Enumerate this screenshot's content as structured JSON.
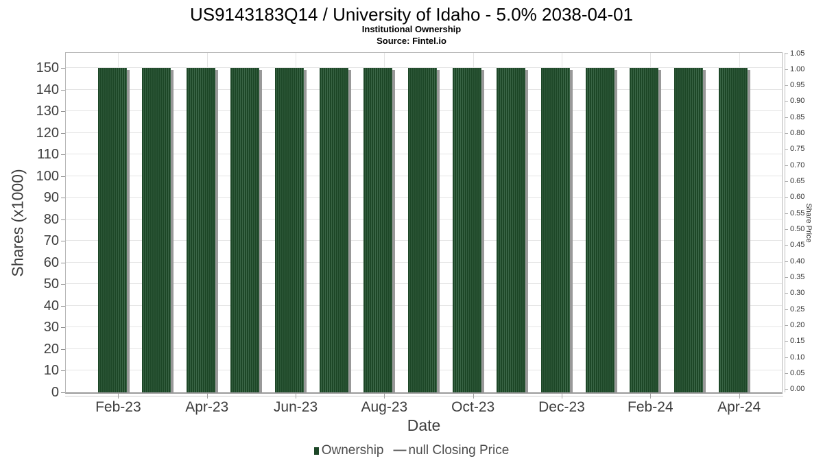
{
  "chart_data": {
    "type": "bar",
    "title": "US9143183Q14 / University of Idaho - 5.0% 2038-04-01",
    "subtitle": "Institutional Ownership",
    "source": "Source: Fintel.io",
    "xlabel": "Date",
    "ylabel": "Shares (x1000)",
    "ylabel_right": "Share Price",
    "categories": [
      "Feb-23",
      "Mar-23",
      "Apr-23",
      "May-23",
      "Jun-23",
      "Jul-23",
      "Aug-23",
      "Sep-23",
      "Oct-23",
      "Nov-23",
      "Dec-23",
      "Jan-24",
      "Feb-24",
      "Mar-24",
      "Apr-24"
    ],
    "values": [
      150,
      150,
      150,
      150,
      150,
      150,
      150,
      150,
      150,
      150,
      150,
      150,
      150,
      150,
      150
    ],
    "series": [
      {
        "name": "Ownership",
        "values": [
          150,
          150,
          150,
          150,
          150,
          150,
          150,
          150,
          150,
          150,
          150,
          150,
          150,
          150,
          150
        ]
      }
    ],
    "x_tick_labels": [
      "Feb-23",
      "Apr-23",
      "Jun-23",
      "Aug-23",
      "Oct-23",
      "Dec-23",
      "Feb-24",
      "Apr-24"
    ],
    "y_left_ticks": [
      0,
      10,
      20,
      30,
      40,
      50,
      60,
      70,
      80,
      90,
      100,
      110,
      120,
      130,
      140,
      150
    ],
    "y_right_ticks": [
      "0.00",
      "0.05",
      "0.10",
      "0.15",
      "0.20",
      "0.25",
      "0.30",
      "0.35",
      "0.40",
      "0.45",
      "0.50",
      "0.55",
      "0.60",
      "0.65",
      "0.70",
      "0.75",
      "0.80",
      "0.85",
      "0.90",
      "0.95",
      "1.00",
      "1.05"
    ],
    "ylim": [
      0,
      150
    ],
    "ylim_right": [
      0,
      1.05
    ],
    "grid": true,
    "legend_position": "bottom",
    "legend": [
      {
        "label": "Ownership",
        "marker": "square",
        "marker_char": "",
        "color": "#1d4727"
      },
      {
        "label": "null Closing Price",
        "marker": "dash",
        "marker_char": "—",
        "color": "#555555"
      }
    ],
    "colors": {
      "bar": "#1d4727",
      "bar_stripe": "#3a6546",
      "bar_shadow": "#999999",
      "grid": "#e4e4e4",
      "axis": "#999999"
    }
  }
}
